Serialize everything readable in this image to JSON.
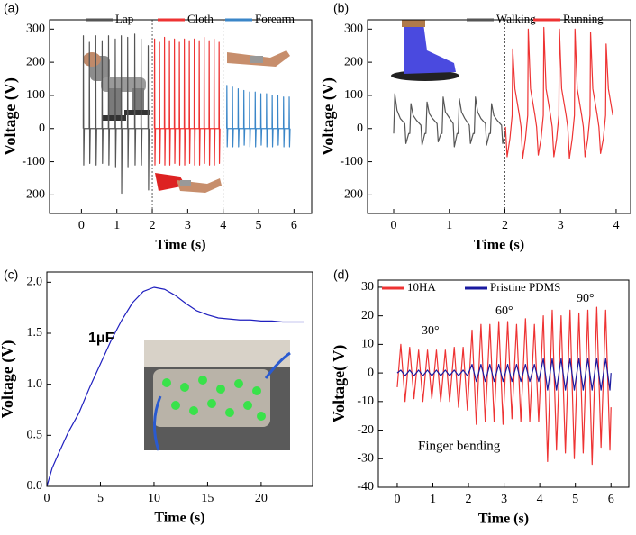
{
  "chart_data": [
    {
      "type": "line",
      "panel": "(a)",
      "xlabel": "Time (s)",
      "ylabel": "Voltage (V)",
      "xlim": [
        -0.9,
        6.5
      ],
      "ylim": [
        -256,
        328
      ],
      "xticks": [
        0,
        1,
        2,
        3,
        4,
        5,
        6
      ],
      "yticks": [
        -200,
        -100,
        0,
        100,
        200,
        300
      ],
      "dividers": [
        2,
        4
      ],
      "series": [
        {
          "name": "Lap",
          "color": "#555555",
          "x": [
            0.05,
            0.055,
            0.065,
            0.08,
            0.22,
            0.225,
            0.235,
            0.25,
            0.4,
            0.405,
            0.415,
            0.43,
            0.58,
            0.585,
            0.595,
            0.61,
            0.76,
            0.765,
            0.775,
            0.79,
            0.95,
            0.955,
            0.965,
            0.98,
            1.12,
            1.125,
            1.135,
            1.15,
            1.3,
            1.305,
            1.315,
            1.33,
            1.5,
            1.505,
            1.515,
            1.53,
            1.68,
            1.685,
            1.695,
            1.71,
            1.88,
            1.885,
            1.895,
            1.91
          ],
          "values": [
            0,
            280,
            -110,
            0,
            0,
            260,
            -105,
            0,
            0,
            280,
            -110,
            0,
            0,
            265,
            -105,
            0,
            0,
            280,
            -110,
            0,
            0,
            270,
            -115,
            0,
            0,
            280,
            -195,
            0,
            0,
            275,
            -115,
            0,
            0,
            285,
            -110,
            0,
            0,
            270,
            -110,
            0,
            0,
            250,
            -185,
            0
          ]
        },
        {
          "name": "Cloth",
          "color": "#ee3333",
          "x": [
            2.06,
            2.065,
            2.075,
            2.09,
            2.2,
            2.205,
            2.215,
            2.23,
            2.34,
            2.345,
            2.355,
            2.37,
            2.48,
            2.485,
            2.495,
            2.51,
            2.62,
            2.625,
            2.635,
            2.65,
            2.76,
            2.765,
            2.775,
            2.79,
            2.9,
            2.905,
            2.915,
            2.93,
            3.04,
            3.045,
            3.055,
            3.07,
            3.18,
            3.185,
            3.195,
            3.21,
            3.32,
            3.325,
            3.335,
            3.35,
            3.46,
            3.465,
            3.475,
            3.49,
            3.6,
            3.605,
            3.615,
            3.63,
            3.74,
            3.745,
            3.755,
            3.77,
            3.88,
            3.885,
            3.895,
            3.91
          ],
          "values": [
            0,
            270,
            -110,
            0,
            0,
            260,
            -105,
            0,
            0,
            275,
            -110,
            0,
            0,
            265,
            -110,
            0,
            0,
            270,
            -105,
            0,
            0,
            260,
            -110,
            0,
            0,
            270,
            -110,
            0,
            0,
            265,
            -105,
            0,
            0,
            270,
            -110,
            0,
            0,
            265,
            -110,
            0,
            0,
            275,
            -105,
            0,
            0,
            265,
            -110,
            0,
            0,
            270,
            -110,
            0,
            0,
            260,
            -105,
            0
          ]
        },
        {
          "name": "Forearm",
          "color": "#3a86c8",
          "x": [
            4.1,
            4.105,
            4.115,
            4.13,
            4.26,
            4.265,
            4.275,
            4.29,
            4.42,
            4.425,
            4.435,
            4.45,
            4.58,
            4.585,
            4.595,
            4.61,
            4.74,
            4.745,
            4.755,
            4.77,
            4.9,
            4.905,
            4.915,
            4.93,
            5.06,
            5.065,
            5.075,
            5.09,
            5.22,
            5.225,
            5.235,
            5.25,
            5.38,
            5.385,
            5.395,
            5.41,
            5.54,
            5.545,
            5.555,
            5.57,
            5.7,
            5.705,
            5.715,
            5.73,
            5.86,
            5.865,
            5.875,
            5.89
          ],
          "values": [
            0,
            130,
            -55,
            0,
            0,
            125,
            -55,
            0,
            0,
            120,
            -55,
            0,
            0,
            115,
            -50,
            0,
            0,
            110,
            -55,
            0,
            0,
            110,
            -55,
            0,
            0,
            105,
            -50,
            0,
            0,
            105,
            -55,
            0,
            0,
            100,
            -55,
            0,
            0,
            100,
            -50,
            0,
            0,
            95,
            -55,
            0,
            0,
            95,
            -55,
            0
          ]
        }
      ]
    },
    {
      "type": "line",
      "panel": "(b)",
      "xlabel": "Time (s)",
      "ylabel": "Voltage (V)",
      "xlim": [
        -0.47,
        4.26
      ],
      "ylim": [
        -256,
        328
      ],
      "xticks": [
        0,
        1,
        2,
        3,
        4
      ],
      "yticks": [
        -200,
        -100,
        0,
        100,
        200,
        300
      ],
      "dividers": [
        2
      ],
      "series": [
        {
          "name": "Walking",
          "color": "#555555",
          "x": [
            0,
            0.02,
            0.06,
            0.12,
            0.2,
            0.22,
            0.27,
            0.29,
            0.31,
            0.35,
            0.41,
            0.49,
            0.51,
            0.56,
            0.58,
            0.6,
            0.64,
            0.7,
            0.78,
            0.8,
            0.85,
            0.87,
            0.89,
            0.93,
            0.99,
            1.07,
            1.09,
            1.14,
            1.16,
            1.18,
            1.22,
            1.28,
            1.36,
            1.38,
            1.43,
            1.45,
            1.47,
            1.51,
            1.57,
            1.65,
            1.67,
            1.72,
            1.74,
            1.76,
            1.8,
            1.86,
            1.94,
            1.96,
            2.01
          ],
          "values": [
            -15,
            105,
            55,
            30,
            15,
            -45,
            -15,
            -15,
            75,
            40,
            25,
            10,
            -50,
            -15,
            -15,
            80,
            45,
            30,
            15,
            -40,
            -15,
            -15,
            95,
            50,
            35,
            15,
            -55,
            -15,
            -15,
            90,
            50,
            30,
            10,
            -45,
            -15,
            -15,
            95,
            50,
            30,
            15,
            -50,
            -15,
            -15,
            75,
            40,
            25,
            10,
            -45,
            -10
          ]
        },
        {
          "name": "Running",
          "color": "#ee3333",
          "x": [
            2.01,
            2.04,
            2.09,
            2.13,
            2.14,
            2.18,
            2.26,
            2.29,
            2.32,
            2.37,
            2.41,
            2.42,
            2.46,
            2.54,
            2.57,
            2.6,
            2.65,
            2.69,
            2.7,
            2.74,
            2.82,
            2.85,
            2.88,
            2.93,
            2.97,
            2.98,
            3.02,
            3.1,
            3.13,
            3.16,
            3.21,
            3.25,
            3.26,
            3.3,
            3.38,
            3.41,
            3.44,
            3.49,
            3.53,
            3.54,
            3.58,
            3.66,
            3.69,
            3.72,
            3.77,
            3.81,
            3.82,
            3.86,
            3.94
          ],
          "values": [
            5,
            -85,
            -30,
            40,
            240,
            120,
            40,
            5,
            -90,
            -30,
            40,
            300,
            120,
            40,
            5,
            -80,
            -30,
            40,
            305,
            120,
            40,
            5,
            -85,
            -30,
            40,
            300,
            120,
            40,
            5,
            -90,
            -30,
            40,
            300,
            120,
            40,
            5,
            -85,
            -30,
            40,
            290,
            120,
            40,
            5,
            -75,
            -30,
            40,
            255,
            120,
            40
          ]
        }
      ]
    },
    {
      "type": "line",
      "panel": "(c)",
      "xlabel": "Time (s)",
      "ylabel": "Voltage (V)",
      "annotations": [
        "1μF"
      ],
      "xlim": [
        0,
        24.8
      ],
      "ylim": [
        0,
        2.1
      ],
      "xticks": [
        0,
        5,
        10,
        15,
        20
      ],
      "yticks": [
        {
          "value": 0,
          "label": "0.0"
        },
        0.5,
        {
          "value": 1,
          "label": "1.0"
        },
        1.5,
        {
          "value": 2,
          "label": "2.0"
        }
      ],
      "series": [
        {
          "color": "#1f1fbf",
          "x": [
            0,
            0.5,
            1,
            2,
            3,
            4,
            5,
            6,
            7,
            8,
            9,
            10,
            11,
            12,
            13,
            14,
            15,
            16,
            17,
            18,
            19,
            20,
            21,
            22,
            23,
            24
          ],
          "values": [
            0,
            0.18,
            0.3,
            0.53,
            0.72,
            0.97,
            1.2,
            1.43,
            1.63,
            1.8,
            1.91,
            1.95,
            1.93,
            1.87,
            1.79,
            1.72,
            1.68,
            1.65,
            1.64,
            1.63,
            1.63,
            1.62,
            1.62,
            1.61,
            1.61,
            1.61
          ]
        }
      ]
    },
    {
      "type": "line",
      "panel": "(d)",
      "xlabel": "Time (s)",
      "ylabel": "Voltage( V)",
      "annotations": [
        "30°",
        "60°",
        "90°",
        "Finger bending"
      ],
      "xlim": [
        -0.53,
        6.5
      ],
      "ylim": [
        -40,
        32.5
      ],
      "xticks": [
        0,
        1,
        2,
        3,
        4,
        5,
        6
      ],
      "yticks": [
        -40,
        -30,
        -20,
        -10,
        0,
        10,
        20,
        30
      ],
      "x": [
        0,
        0.1,
        0.22,
        0.35,
        0.47,
        0.6,
        0.72,
        0.85,
        0.97,
        1.1,
        1.22,
        1.35,
        1.47,
        1.6,
        1.72,
        1.85,
        1.97,
        2.1,
        2.22,
        2.35,
        2.47,
        2.6,
        2.72,
        2.85,
        2.97,
        3.1,
        3.22,
        3.35,
        3.47,
        3.6,
        3.72,
        3.85,
        3.97,
        4.1,
        4.22,
        4.35,
        4.47,
        4.6,
        4.72,
        4.85,
        4.97,
        5.1,
        5.22,
        5.35,
        5.47,
        5.6,
        5.72,
        5.85,
        5.97,
        6
      ],
      "series": [
        {
          "name": "10HA",
          "color": "#ee3333",
          "values": [
            -5,
            10,
            -10,
            9,
            -9,
            8,
            -10,
            8,
            -9,
            8,
            -10,
            8,
            -10,
            9,
            -12,
            9,
            -13,
            15,
            -18,
            17,
            -17,
            17,
            -17,
            18,
            -18,
            18,
            -16,
            17,
            -17,
            19,
            -17,
            17,
            -17,
            20,
            -31,
            22,
            -27,
            20,
            -28,
            22,
            -30,
            21,
            -28,
            22,
            -32,
            23,
            -26,
            22,
            -27,
            -12
          ]
        },
        {
          "name": "Pristine PDMS",
          "color": "#1a1aa0",
          "values": [
            0,
            1,
            -1,
            1,
            -1,
            1,
            -1,
            1,
            -1,
            1,
            -1,
            1,
            -1,
            1,
            -1,
            1,
            -1,
            3,
            -3,
            3,
            -3,
            3,
            -3,
            3,
            -3,
            3,
            -3,
            3,
            -3,
            3,
            -3,
            3,
            -3,
            5,
            -6,
            5,
            -6,
            5,
            -6,
            5,
            -6,
            5,
            -6,
            5,
            -6,
            5,
            -6,
            5,
            -6,
            0
          ]
        }
      ]
    }
  ]
}
